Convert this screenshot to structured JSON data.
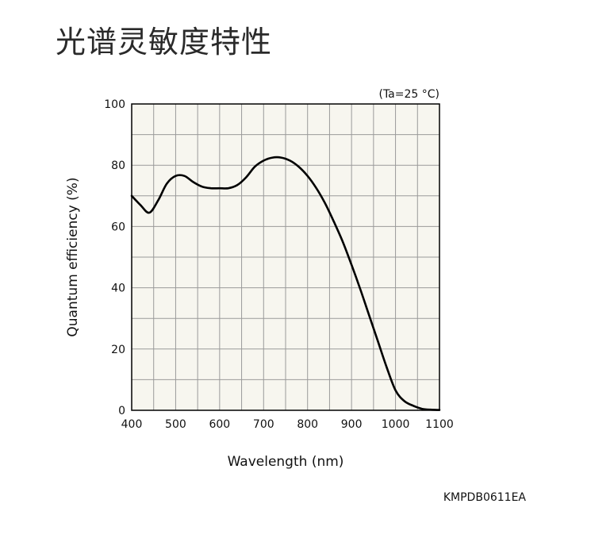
{
  "page": {
    "title": "光谱灵敏度特性"
  },
  "chart_data": {
    "type": "line",
    "title": "",
    "condition_note": "(Ta=25 °C)",
    "xlabel": "Wavelength (nm)",
    "ylabel": "Quantum efficiency (%)",
    "xlim": [
      400,
      1100
    ],
    "ylim": [
      0,
      100
    ],
    "xticks": [
      400,
      500,
      600,
      700,
      800,
      900,
      1000,
      1100
    ],
    "yticks": [
      0,
      20,
      40,
      60,
      80,
      100
    ],
    "grid": true,
    "colors": {
      "plot_background": "#f7f6ef",
      "grid": "#9a9a9a",
      "line": "#000000"
    },
    "series": [
      {
        "x": [
          400,
          420,
          440,
          460,
          480,
          500,
          520,
          540,
          560,
          580,
          600,
          620,
          640,
          660,
          680,
          700,
          720,
          740,
          760,
          780,
          800,
          820,
          840,
          860,
          880,
          900,
          920,
          940,
          960,
          980,
          1000,
          1020,
          1040,
          1060,
          1080,
          1100
        ],
        "y": [
          70,
          67,
          64.5,
          68.5,
          74,
          76.5,
          76.5,
          74.5,
          73,
          72.5,
          72.5,
          72.5,
          73.5,
          76,
          79.5,
          81.5,
          82.5,
          82.5,
          81.5,
          79.5,
          76.5,
          72.5,
          67.5,
          61.5,
          55,
          47.5,
          39.5,
          31,
          22.5,
          14,
          6.5,
          3,
          1.5,
          0.5,
          0.2,
          0.1
        ]
      }
    ]
  },
  "footer": {
    "code": "KMPDB0611EA"
  }
}
